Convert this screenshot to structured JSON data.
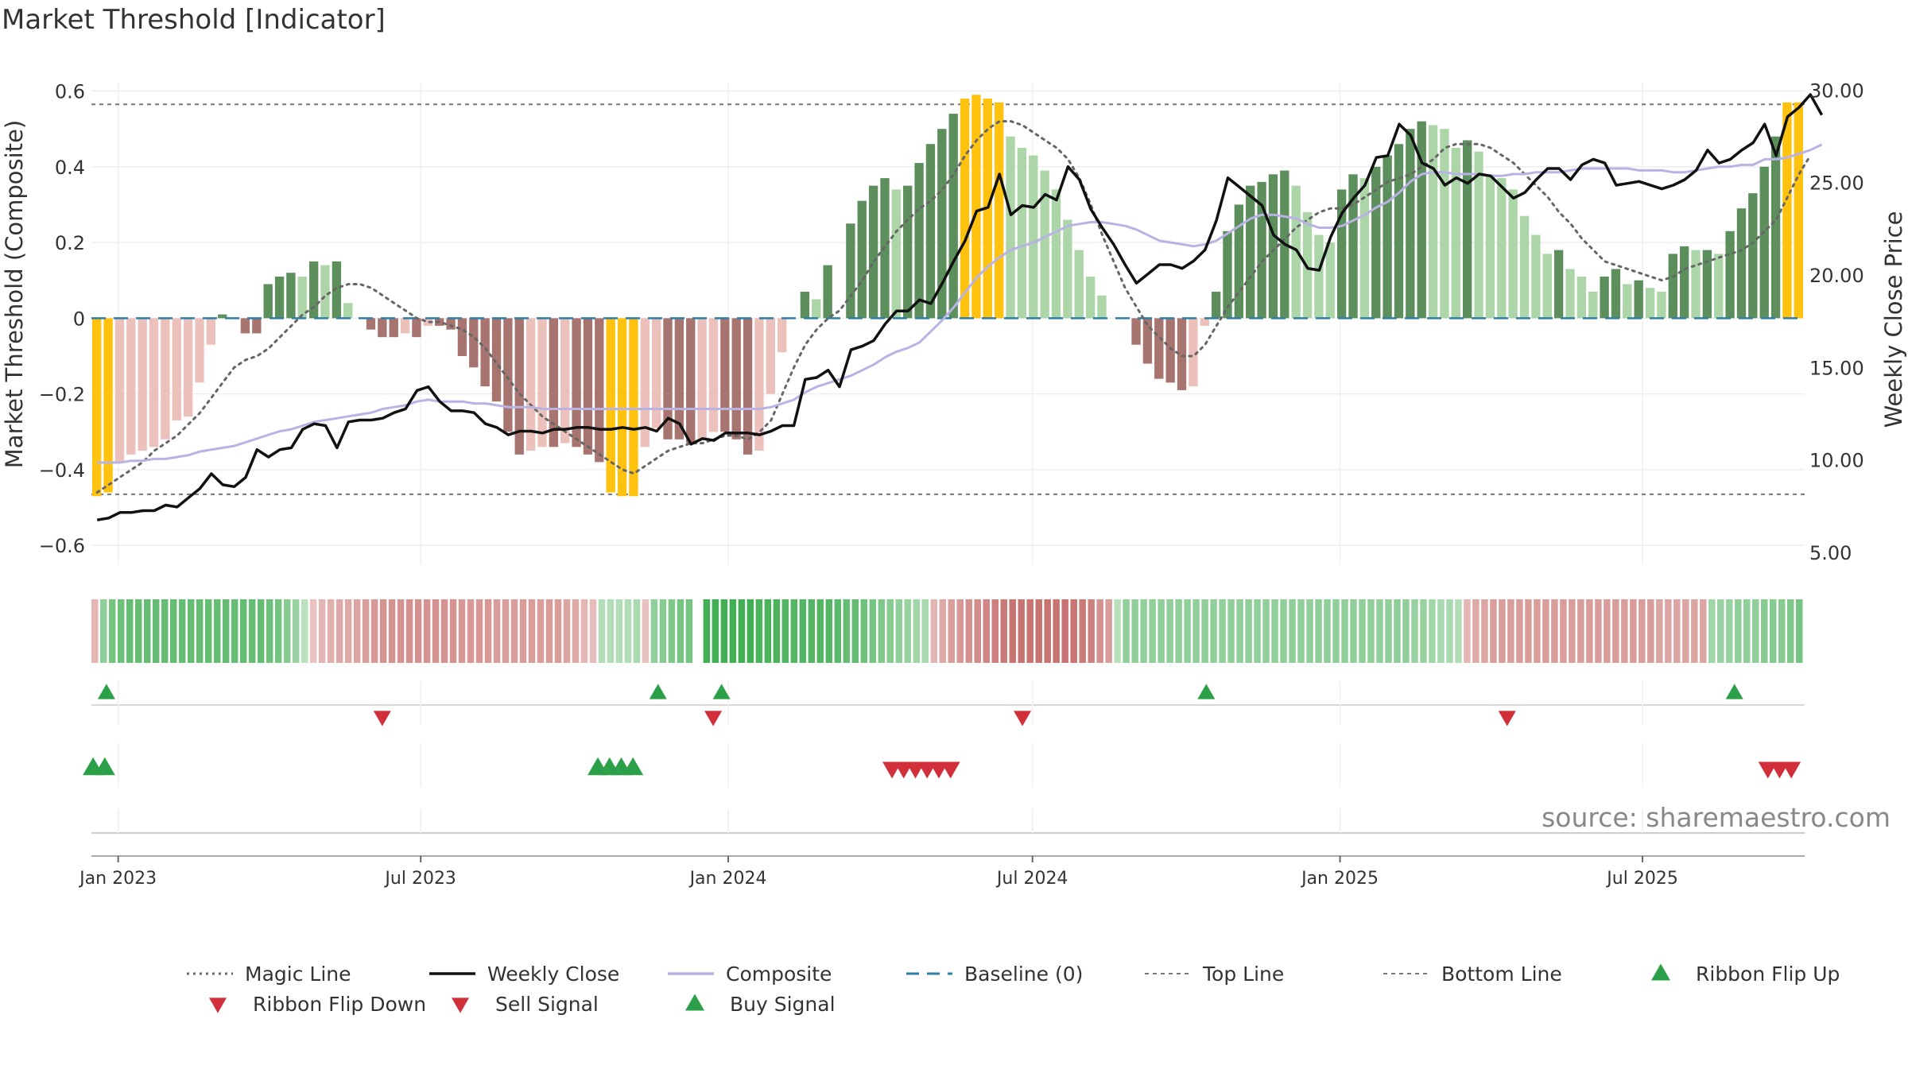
{
  "chart_data": {
    "type": "bar",
    "title": "Market Threshold [Indicator]",
    "ylabel_left": "Market Threshold (Composite)",
    "ylabel_right": "Weekly Close Price",
    "source": "source: sharemaestro.com",
    "x_ticks": [
      {
        "date": "2023-01-01",
        "label": "Jan 2023"
      },
      {
        "date": "2023-07-01",
        "label": "Jul 2023"
      },
      {
        "date": "2024-01-01",
        "label": "Jan 2024"
      },
      {
        "date": "2024-07-01",
        "label": "Jul 2024"
      },
      {
        "date": "2025-01-01",
        "label": "Jan 2025"
      },
      {
        "date": "2025-07-01",
        "label": "Jul 2025"
      }
    ],
    "x_range": [
      "2022-12-16",
      "2025-10-06"
    ],
    "left_axis": {
      "range": [
        -0.65,
        0.62
      ],
      "ticks": [
        0.6,
        0.4,
        0.2,
        0,
        -0.2,
        -0.4,
        -0.6
      ],
      "tick_labels": [
        "0.6",
        "0.4",
        "0.2",
        "0",
        "−0.2",
        "−0.4",
        "−0.6"
      ]
    },
    "right_axis": {
      "range": [
        4.4,
        30.4
      ],
      "ticks": [
        30,
        25,
        20,
        15,
        10,
        5
      ],
      "tick_labels": [
        "30.00",
        "25.00",
        "20.00",
        "15.00",
        "10.00",
        "5.00"
      ]
    },
    "top_line": 0.565,
    "bottom_line": -0.465,
    "baseline": 0,
    "colors": {
      "extreme": "#ffc20e",
      "pos_strong": "#5d8f5d",
      "pos_weak": "#acd6a8",
      "neg_strong": "#a87470",
      "neg_weak": "#edc1bb",
      "weekly_close": "#111111",
      "composite": "#b9b3e4",
      "magic_line": "#666666",
      "baseline": "#2e7ea8",
      "threshold_line": "#777777",
      "buy": "#2ca048",
      "sell": "#d12f3a"
    },
    "composite_bars": [
      -0.47,
      -0.46,
      -0.38,
      -0.36,
      -0.35,
      -0.34,
      -0.32,
      -0.27,
      -0.26,
      -0.17,
      -0.07,
      0.01,
      0.0,
      -0.04,
      -0.04,
      0.09,
      0.11,
      0.12,
      0.11,
      0.15,
      0.14,
      0.15,
      0.04,
      0.0,
      -0.03,
      -0.05,
      -0.05,
      -0.04,
      -0.05,
      -0.02,
      -0.02,
      -0.03,
      -0.1,
      -0.13,
      -0.18,
      -0.22,
      -0.3,
      -0.36,
      -0.35,
      -0.34,
      -0.34,
      -0.33,
      -0.34,
      -0.36,
      -0.38,
      -0.46,
      -0.47,
      -0.47,
      -0.34,
      -0.29,
      -0.32,
      -0.32,
      -0.33,
      -0.32,
      -0.3,
      -0.3,
      -0.32,
      -0.36,
      -0.35,
      -0.2,
      -0.09,
      0.0,
      0.07,
      0.05,
      0.14,
      0.0,
      0.25,
      0.31,
      0.35,
      0.37,
      0.34,
      0.35,
      0.41,
      0.46,
      0.5,
      0.54,
      0.58,
      0.59,
      0.58,
      0.57,
      0.48,
      0.45,
      0.43,
      0.39,
      0.34,
      0.26,
      0.18,
      0.11,
      0.06,
      0.0,
      0.0,
      -0.07,
      -0.12,
      -0.16,
      -0.17,
      -0.19,
      -0.18,
      -0.02,
      0.07,
      0.23,
      0.3,
      0.35,
      0.36,
      0.38,
      0.39,
      0.35,
      0.28,
      0.22,
      0.2,
      0.34,
      0.38,
      0.37,
      0.4,
      0.43,
      0.46,
      0.5,
      0.52,
      0.51,
      0.5,
      0.45,
      0.47,
      0.44,
      0.38,
      0.37,
      0.34,
      0.27,
      0.22,
      0.17,
      0.18,
      0.13,
      0.11,
      0.07,
      0.11,
      0.13,
      0.09,
      0.1,
      0.08,
      0.07,
      0.17,
      0.19,
      0.18,
      0.18,
      0.17,
      0.23,
      0.29,
      0.33,
      0.4,
      0.48,
      0.57,
      0.57
    ],
    "weekly_close": [
      6.8,
      6.9,
      7.2,
      7.2,
      7.3,
      7.3,
      7.6,
      7.5,
      8.0,
      8.5,
      9.3,
      8.7,
      8.6,
      9.1,
      10.6,
      10.2,
      10.6,
      10.7,
      11.7,
      12.0,
      11.9,
      10.7,
      12.1,
      12.2,
      12.2,
      12.3,
      12.6,
      12.8,
      13.8,
      14.0,
      13.2,
      12.7,
      12.7,
      12.6,
      12.0,
      11.8,
      11.4,
      11.6,
      11.6,
      11.5,
      11.7,
      11.7,
      11.8,
      11.8,
      11.7,
      11.7,
      11.8,
      11.7,
      11.8,
      11.6,
      12.3,
      12.0,
      10.9,
      11.2,
      11.1,
      11.5,
      11.5,
      11.5,
      11.4,
      11.6,
      11.9,
      11.9,
      14.4,
      14.5,
      14.9,
      14.0,
      16.0,
      16.2,
      16.5,
      17.4,
      18.1,
      18.1,
      18.7,
      18.5,
      19.6,
      20.8,
      21.9,
      23.5,
      23.7,
      25.5,
      23.3,
      23.8,
      23.7,
      24.4,
      24.1,
      25.9,
      25.2,
      23.6,
      22.6,
      21.7,
      20.6,
      19.6,
      20.1,
      20.6,
      20.6,
      20.4,
      20.8,
      21.4,
      23.0,
      25.3,
      24.8,
      24.3,
      23.8,
      22.2,
      21.7,
      21.4,
      20.4,
      20.3,
      22.1,
      23.4,
      24.2,
      24.9,
      26.4,
      26.5,
      28.2,
      27.6,
      26.1,
      25.8,
      24.9,
      25.3,
      25.0,
      25.5,
      25.4,
      24.8,
      24.2,
      24.5,
      25.2,
      25.8,
      25.8,
      25.2,
      26.0,
      26.3,
      26.1,
      24.9,
      25.0,
      25.1,
      24.9,
      24.7,
      24.9,
      25.2,
      25.7,
      26.8,
      26.1,
      26.3,
      26.8,
      27.2,
      28.2,
      26.5,
      28.6,
      29.1,
      29.8,
      28.7
    ],
    "composite_line": [
      9.9,
      9.9,
      9.9,
      10.0,
      10.0,
      10.1,
      10.1,
      10.2,
      10.3,
      10.5,
      10.6,
      10.7,
      10.8,
      11.0,
      11.2,
      11.4,
      11.6,
      11.7,
      11.9,
      12.1,
      12.2,
      12.3,
      12.4,
      12.5,
      12.6,
      12.8,
      12.9,
      13.0,
      13.2,
      13.3,
      13.2,
      13.2,
      13.2,
      13.1,
      13.1,
      13.0,
      12.9,
      12.9,
      12.9,
      12.8,
      12.8,
      12.8,
      12.8,
      12.8,
      12.8,
      12.8,
      12.8,
      12.8,
      12.8,
      12.8,
      12.8,
      12.8,
      12.8,
      12.8,
      12.8,
      12.8,
      12.8,
      12.8,
      12.8,
      12.9,
      13.1,
      13.3,
      13.7,
      14.0,
      14.2,
      14.4,
      14.6,
      14.9,
      15.2,
      15.6,
      15.9,
      16.1,
      16.4,
      17.0,
      17.6,
      18.3,
      19.1,
      19.9,
      20.5,
      21.0,
      21.4,
      21.6,
      21.8,
      22.1,
      22.4,
      22.7,
      22.8,
      22.9,
      22.9,
      22.8,
      22.7,
      22.5,
      22.2,
      21.9,
      21.8,
      21.7,
      21.6,
      21.7,
      21.9,
      22.3,
      22.7,
      23.1,
      23.3,
      23.3,
      23.2,
      23.1,
      22.8,
      22.6,
      22.6,
      22.7,
      23.0,
      23.3,
      23.7,
      24.0,
      24.5,
      25.1,
      25.5,
      25.6,
      25.6,
      25.5,
      25.5,
      25.5,
      25.4,
      25.4,
      25.5,
      25.5,
      25.6,
      25.6,
      25.6,
      25.7,
      25.8,
      25.8,
      25.8,
      25.8,
      25.8,
      25.7,
      25.7,
      25.7,
      25.6,
      25.6,
      25.7,
      25.8,
      25.9,
      25.9,
      26.0,
      26.0,
      26.3,
      26.3,
      26.4,
      26.6,
      26.8,
      27.1
    ],
    "magic_line": [
      -0.46,
      -0.44,
      -0.42,
      -0.4,
      -0.38,
      -0.35,
      -0.33,
      -0.31,
      -0.28,
      -0.25,
      -0.21,
      -0.17,
      -0.13,
      -0.11,
      -0.1,
      -0.08,
      -0.05,
      -0.02,
      0.01,
      0.03,
      0.06,
      0.08,
      0.09,
      0.09,
      0.08,
      0.06,
      0.04,
      0.02,
      0.0,
      -0.01,
      -0.01,
      -0.02,
      -0.03,
      -0.05,
      -0.08,
      -0.12,
      -0.16,
      -0.2,
      -0.23,
      -0.26,
      -0.28,
      -0.3,
      -0.32,
      -0.34,
      -0.36,
      -0.38,
      -0.4,
      -0.41,
      -0.39,
      -0.37,
      -0.35,
      -0.34,
      -0.33,
      -0.33,
      -0.32,
      -0.31,
      -0.31,
      -0.32,
      -0.3,
      -0.27,
      -0.2,
      -0.13,
      -0.07,
      -0.03,
      0.0,
      0.02,
      0.06,
      0.1,
      0.15,
      0.19,
      0.23,
      0.26,
      0.29,
      0.31,
      0.34,
      0.38,
      0.43,
      0.47,
      0.5,
      0.52,
      0.52,
      0.51,
      0.49,
      0.47,
      0.45,
      0.42,
      0.37,
      0.3,
      0.22,
      0.15,
      0.08,
      0.03,
      -0.02,
      -0.05,
      -0.08,
      -0.1,
      -0.1,
      -0.07,
      -0.02,
      0.03,
      0.07,
      0.11,
      0.15,
      0.18,
      0.21,
      0.24,
      0.26,
      0.28,
      0.29,
      0.29,
      0.3,
      0.32,
      0.34,
      0.36,
      0.37,
      0.38,
      0.4,
      0.42,
      0.45,
      0.46,
      0.46,
      0.46,
      0.45,
      0.43,
      0.41,
      0.38,
      0.35,
      0.32,
      0.28,
      0.25,
      0.21,
      0.18,
      0.15,
      0.14,
      0.13,
      0.12,
      0.11,
      0.1,
      0.11,
      0.13,
      0.14,
      0.15,
      0.16,
      0.17,
      0.18,
      0.2,
      0.23,
      0.26,
      0.32,
      0.38,
      0.43
    ],
    "ribbon": [
      -0.3,
      0.45,
      0.6,
      0.65,
      0.7,
      0.7,
      0.7,
      0.7,
      0.7,
      0.7,
      0.7,
      0.7,
      0.7,
      0.7,
      0.7,
      0.7,
      0.7,
      0.7,
      0.7,
      0.7,
      0.65,
      0.6,
      0.5,
      0.4,
      0.2,
      -0.2,
      -0.3,
      -0.35,
      -0.4,
      -0.4,
      -0.45,
      -0.5,
      -0.55,
      -0.6,
      -0.6,
      -0.6,
      -0.6,
      -0.6,
      -0.6,
      -0.6,
      -0.6,
      -0.6,
      -0.55,
      -0.55,
      -0.55,
      -0.55,
      -0.5,
      -0.5,
      -0.5,
      -0.5,
      -0.5,
      -0.5,
      -0.5,
      -0.5,
      -0.45,
      -0.4,
      -0.3,
      -0.25,
      0.25,
      0.25,
      0.25,
      0.25,
      0.3,
      -0.2,
      0.45,
      0.5,
      0.55,
      0.6,
      0.6,
      0.0,
      0.9,
      0.9,
      0.9,
      0.9,
      0.9,
      0.9,
      0.85,
      0.85,
      0.85,
      0.8,
      0.8,
      0.8,
      0.8,
      0.8,
      0.8,
      0.75,
      0.7,
      0.7,
      0.65,
      0.6,
      0.55,
      0.5,
      0.45,
      0.4,
      0.35,
      0.3,
      -0.3,
      -0.4,
      -0.5,
      -0.55,
      -0.6,
      -0.65,
      -0.7,
      -0.75,
      -0.8,
      -0.85,
      -0.85,
      -0.85,
      -0.85,
      -0.85,
      -0.85,
      -0.85,
      -0.85,
      -0.8,
      -0.75,
      -0.6,
      -0.5,
      0.2,
      0.45,
      0.45,
      0.45,
      0.45,
      0.45,
      0.45,
      0.45,
      0.45,
      0.45,
      0.45,
      0.45,
      0.45,
      0.45,
      0.45,
      0.45,
      0.45,
      0.45,
      0.45,
      0.45,
      0.45,
      0.45,
      0.45,
      0.45,
      0.45,
      0.45,
      0.45,
      0.45,
      0.45,
      0.45,
      0.45,
      0.45,
      0.45,
      0.45,
      0.4,
      0.4,
      0.35,
      0.3,
      0.3,
      0.25,
      -0.3,
      -0.4,
      -0.45,
      -0.5,
      -0.5,
      -0.5,
      -0.5,
      -0.5,
      -0.5,
      -0.5,
      -0.5,
      -0.5,
      -0.5,
      -0.5,
      -0.5,
      -0.5,
      -0.5,
      -0.5,
      -0.5,
      -0.5,
      -0.5,
      -0.5,
      -0.45,
      -0.45,
      -0.45,
      -0.45,
      -0.45,
      -0.45,
      0.35,
      0.4,
      0.4,
      0.45,
      0.45,
      0.45,
      0.5,
      0.5,
      0.5,
      0.55,
      0.6
    ],
    "ribbon_flip_up": [
      "2022-12-25",
      "2023-11-20",
      "2023-12-28",
      "2024-10-13",
      "2025-08-25"
    ],
    "ribbon_flip_down": [
      "2023-06-08",
      "2023-12-23",
      "2024-06-25",
      "2025-04-11"
    ],
    "buy_signals": [
      "2022-12-17",
      "2022-12-24",
      "2023-10-15",
      "2023-10-22",
      "2023-10-29",
      "2023-11-05"
    ],
    "sell_signals": [
      "2024-04-08",
      "2024-04-15",
      "2024-04-22",
      "2024-04-29",
      "2024-05-06",
      "2024-05-13",
      "2025-09-14",
      "2025-09-21",
      "2025-09-28"
    ],
    "legend": [
      {
        "label": "Magic Line",
        "marker": "dotted-line"
      },
      {
        "label": "Weekly Close",
        "marker": "solid-line"
      },
      {
        "label": "Composite",
        "marker": "solid-light-line"
      },
      {
        "label": "Baseline (0)",
        "marker": "dashed-line"
      },
      {
        "label": "Top Line",
        "marker": "fine-dashed-line"
      },
      {
        "label": "Bottom Line",
        "marker": "fine-dashed-line"
      },
      {
        "label": "Ribbon Flip Up",
        "marker": "triangle-up-green"
      },
      {
        "label": "Ribbon Flip Down",
        "marker": "triangle-down-red"
      },
      {
        "label": "Sell Signal",
        "marker": "triangle-down-red"
      },
      {
        "label": "Buy Signal",
        "marker": "triangle-up-green"
      }
    ]
  }
}
